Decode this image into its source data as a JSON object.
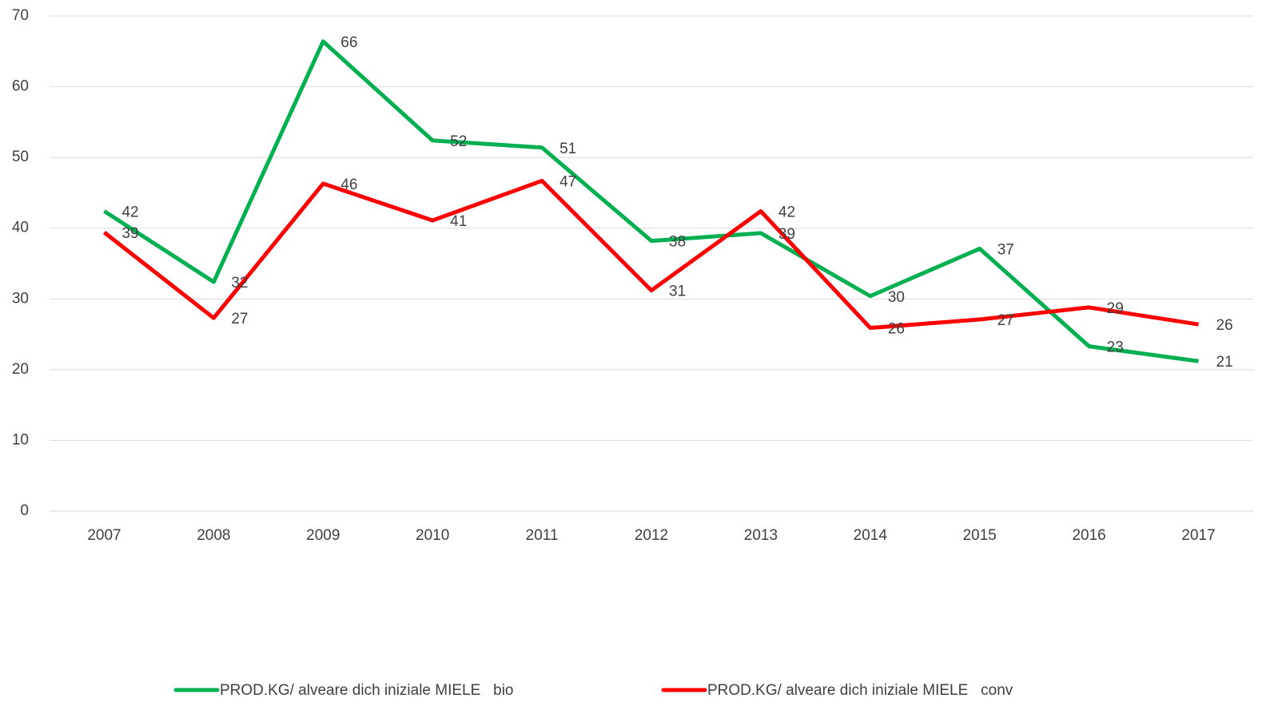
{
  "chart_data": {
    "type": "line",
    "categories": [
      "2007",
      "2008",
      "2009",
      "2010",
      "2011",
      "2012",
      "2013",
      "2014",
      "2015",
      "2016",
      "2017"
    ],
    "series": [
      {
        "name": "PROD.KG/ alveare dich iniziale MIELE   bio",
        "color": "#00b050",
        "values": [
          42.4,
          32.4,
          66.4,
          52.4,
          51.4,
          38.2,
          39.3,
          30.4,
          37.1,
          23.3,
          21.2
        ],
        "value_labels": [
          "42",
          "32",
          "66",
          "52",
          "51",
          "38",
          "39",
          "30",
          "37",
          "23",
          "21"
        ]
      },
      {
        "name": "PROD.KG/ alveare dich iniziale MIELE   conv",
        "color": "#ff0000",
        "values": [
          39.4,
          27.3,
          46.3,
          41.1,
          46.7,
          31.2,
          42.4,
          25.9,
          27.1,
          28.8,
          26.4
        ],
        "value_labels": [
          "39",
          "27",
          "46",
          "41",
          "47",
          "31",
          "42",
          "26",
          "27",
          "29",
          "26"
        ]
      }
    ],
    "ylim": [
      0,
      70
    ],
    "yticks": [
      0,
      10,
      20,
      30,
      40,
      50,
      60,
      70
    ],
    "grid": true,
    "legend": "bottom"
  }
}
